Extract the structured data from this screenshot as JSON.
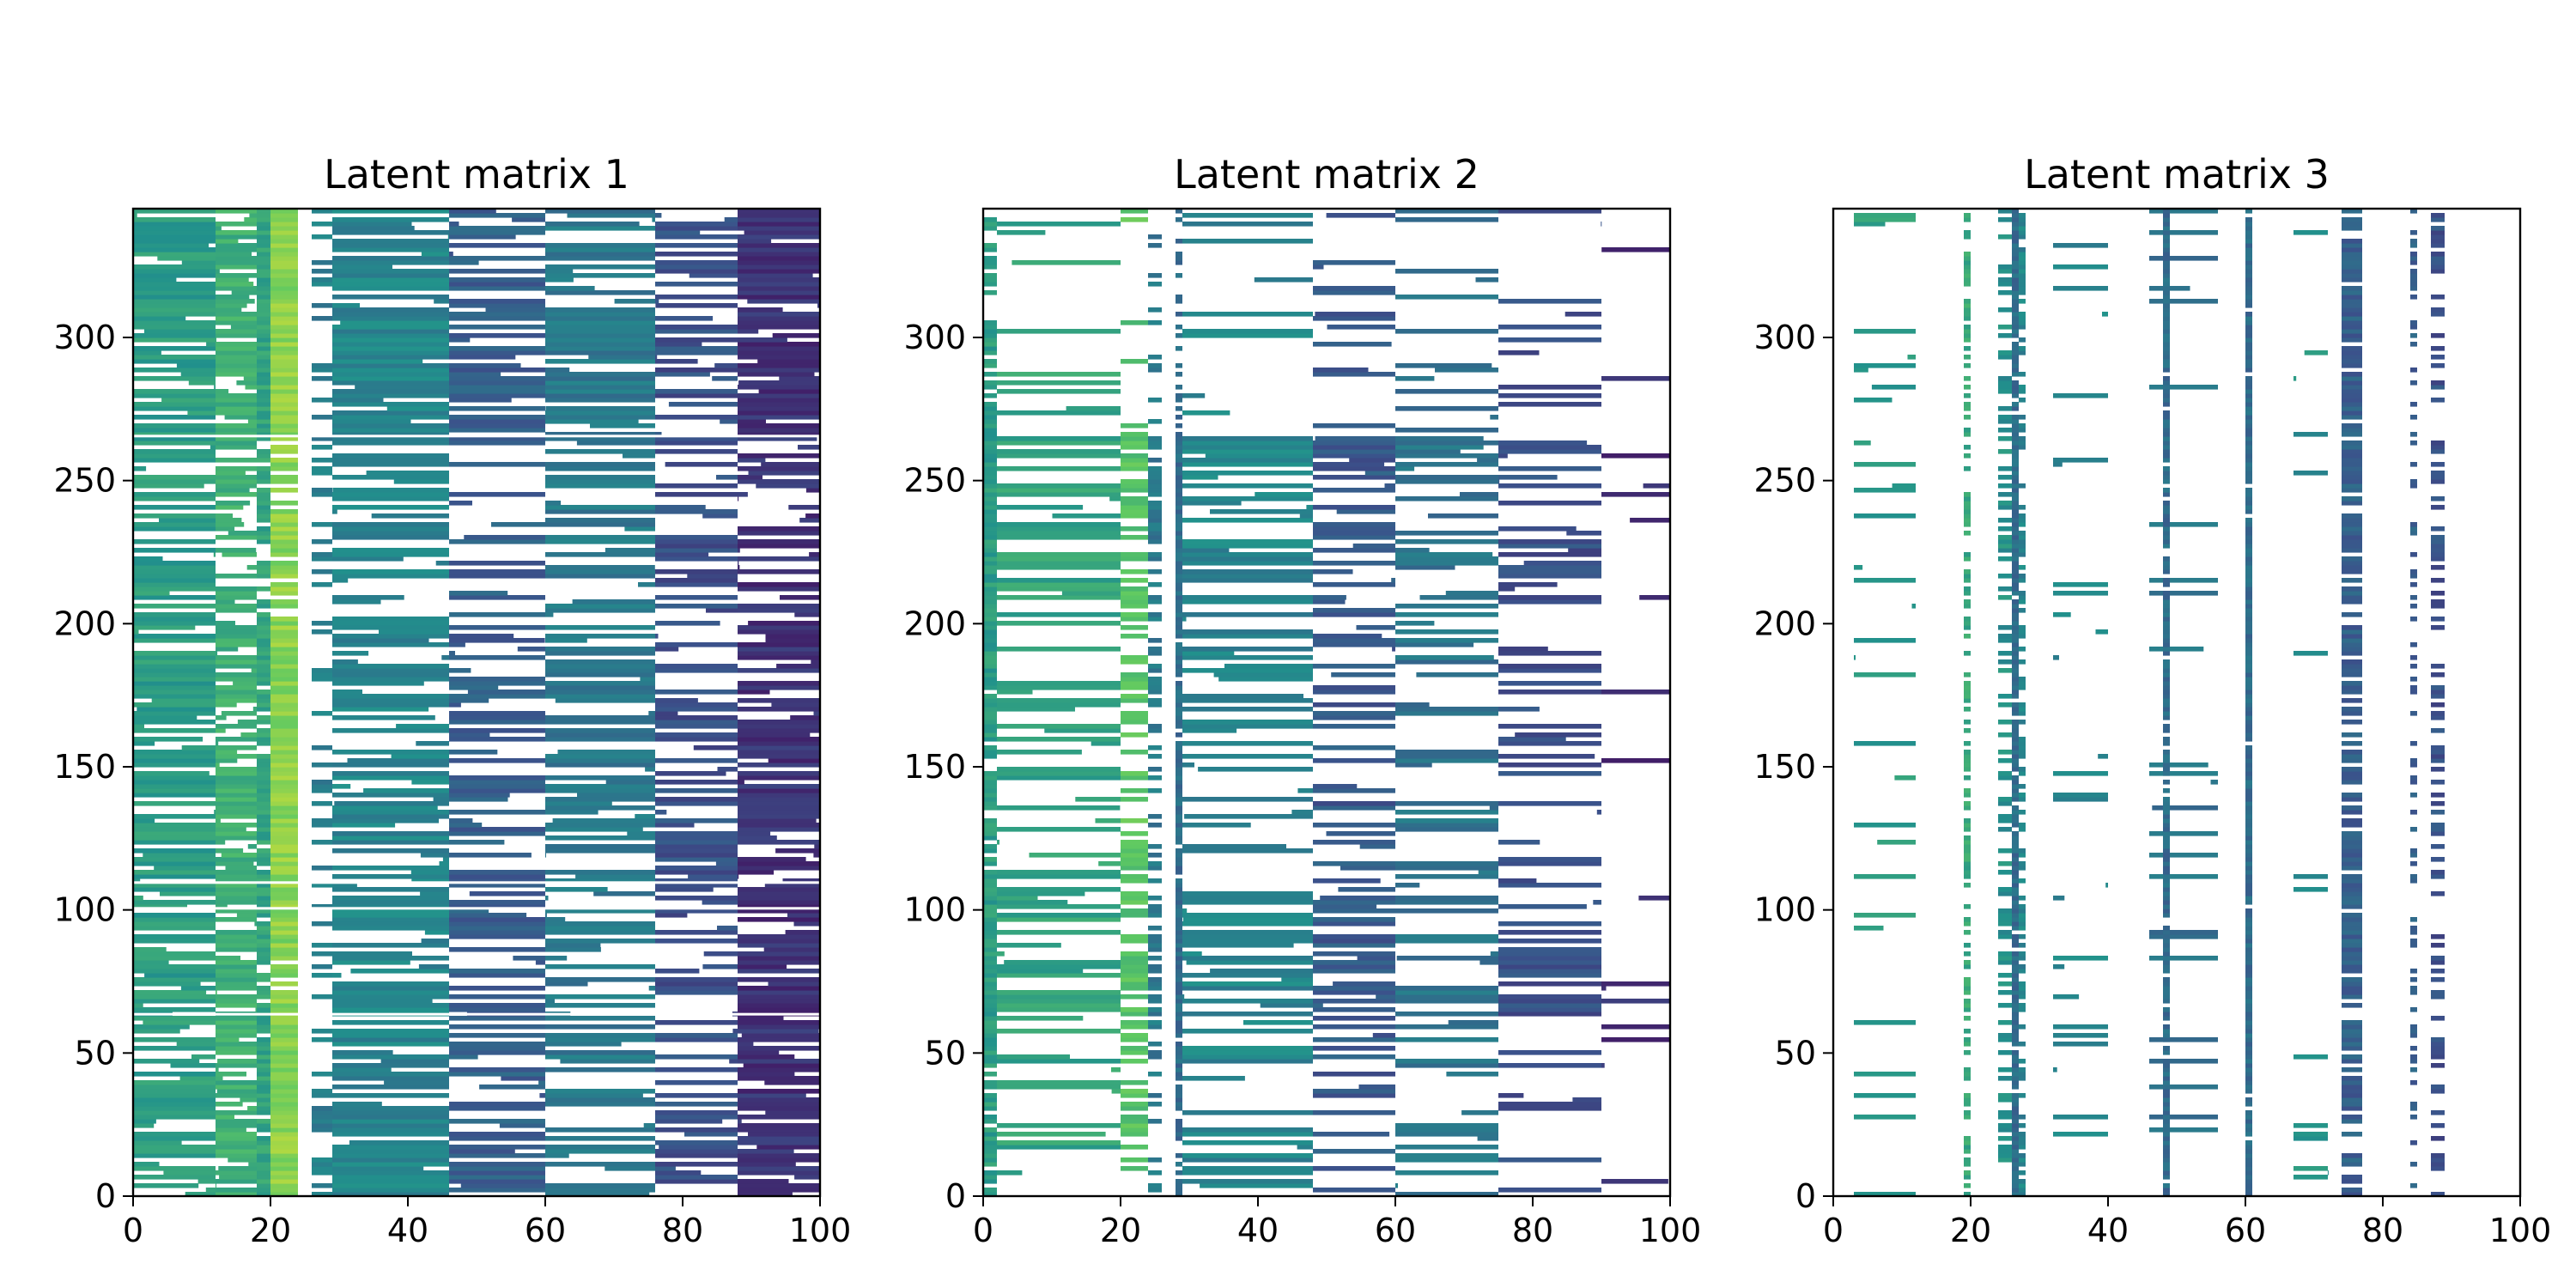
{
  "chart_data": [
    {
      "type": "heatmap",
      "title": "Latent matrix 1",
      "xlabel": "",
      "ylabel": "",
      "xlim": [
        0,
        100
      ],
      "ylim": [
        0,
        345
      ],
      "xticks": [
        "0",
        "20",
        "40",
        "60",
        "80",
        "100"
      ],
      "yticks": [
        "0",
        "50",
        "100",
        "150",
        "200",
        "250",
        "300"
      ],
      "colormap": "viridis",
      "columns": [
        {
          "x": [
            0,
            12
          ],
          "level": 0.55,
          "density": 0.82
        },
        {
          "x": [
            12,
            18
          ],
          "level": 0.63,
          "density": 0.92
        },
        {
          "x": [
            18,
            20
          ],
          "level": 0.58,
          "density": 0.8
        },
        {
          "x": [
            20,
            24
          ],
          "level": 0.82,
          "density": 0.95
        },
        {
          "x": [
            26,
            29
          ],
          "level": 0.42,
          "density": 0.3
        },
        {
          "x": [
            29,
            46
          ],
          "level": 0.45,
          "density": 0.78
        },
        {
          "x": [
            46,
            60
          ],
          "level": 0.3,
          "density": 0.62
        },
        {
          "x": [
            60,
            76
          ],
          "level": 0.4,
          "density": 0.65
        },
        {
          "x": [
            76,
            88
          ],
          "level": 0.25,
          "density": 0.55
        },
        {
          "x": [
            88,
            100
          ],
          "level": 0.15,
          "density": 0.88
        }
      ],
      "row_bands": [
        {
          "y": [
            264,
            345
          ],
          "density": 0.95
        },
        {
          "y": [
            200,
            264
          ],
          "density": 0.55
        },
        {
          "y": [
            110,
            200
          ],
          "density": 0.8
        },
        {
          "y": [
            100,
            110
          ],
          "density": 0.9
        },
        {
          "y": [
            65,
            100
          ],
          "density": 0.7
        },
        {
          "y": [
            0,
            65
          ],
          "density": 0.85
        }
      ],
      "gaps": [
        265,
        109,
        100,
        63
      ]
    },
    {
      "type": "heatmap",
      "title": "Latent matrix 2",
      "xlabel": "",
      "ylabel": "",
      "xlim": [
        0,
        100
      ],
      "ylim": [
        0,
        345
      ],
      "xticks": [
        "0",
        "20",
        "40",
        "60",
        "80",
        "100"
      ],
      "yticks": [
        "0",
        "50",
        "100",
        "150",
        "200",
        "250",
        "300"
      ],
      "colormap": "viridis",
      "columns": [
        {
          "x": [
            0,
            2
          ],
          "level": 0.55,
          "density": 0.95
        },
        {
          "x": [
            2,
            20
          ],
          "level": 0.58,
          "density": 0.4
        },
        {
          "x": [
            20,
            24
          ],
          "level": 0.72,
          "density": 0.5
        },
        {
          "x": [
            24,
            26
          ],
          "level": 0.4,
          "density": 0.55
        },
        {
          "x": [
            28,
            29
          ],
          "level": 0.35,
          "density": 0.95
        },
        {
          "x": [
            29,
            48
          ],
          "level": 0.45,
          "density": 0.5
        },
        {
          "x": [
            48,
            60
          ],
          "level": 0.28,
          "density": 0.45
        },
        {
          "x": [
            60,
            75
          ],
          "level": 0.38,
          "density": 0.45
        },
        {
          "x": [
            75,
            90
          ],
          "level": 0.25,
          "density": 0.4
        },
        {
          "x": [
            90,
            100
          ],
          "level": 0.15,
          "density": 0.08
        }
      ],
      "row_bands": [
        {
          "y": [
            265,
            345
          ],
          "density": 0.1
        },
        {
          "y": [
            200,
            265
          ],
          "density": 0.95
        },
        {
          "y": [
            105,
            200
          ],
          "density": 0.55
        },
        {
          "y": [
            63,
            105
          ],
          "density": 1.0
        },
        {
          "y": [
            0,
            63
          ],
          "density": 0.5
        }
      ],
      "gaps": []
    },
    {
      "type": "heatmap",
      "title": "Latent matrix 3",
      "xlabel": "",
      "ylabel": "",
      "xlim": [
        0,
        100
      ],
      "ylim": [
        0,
        345
      ],
      "xticks": [
        "0",
        "20",
        "40",
        "60",
        "80",
        "100"
      ],
      "yticks": [
        "0",
        "50",
        "100",
        "150",
        "200",
        "250",
        "300"
      ],
      "colormap": "viridis",
      "columns": [
        {
          "x": [
            3,
            12
          ],
          "level": 0.55,
          "density": 0.18
        },
        {
          "x": [
            19,
            20
          ],
          "level": 0.6,
          "density": 0.55
        },
        {
          "x": [
            24,
            26
          ],
          "level": 0.5,
          "density": 0.4
        },
        {
          "x": [
            26,
            27
          ],
          "level": 0.35,
          "density": 0.95
        },
        {
          "x": [
            27,
            28
          ],
          "level": 0.45,
          "density": 0.5
        },
        {
          "x": [
            32,
            40
          ],
          "level": 0.45,
          "density": 0.12
        },
        {
          "x": [
            46,
            56
          ],
          "level": 0.38,
          "density": 0.12
        },
        {
          "x": [
            48,
            49
          ],
          "level": 0.35,
          "density": 0.9
        },
        {
          "x": [
            60,
            61
          ],
          "level": 0.35,
          "density": 0.98
        },
        {
          "x": [
            67,
            72
          ],
          "level": 0.5,
          "density": 0.06
        },
        {
          "x": [
            74,
            77
          ],
          "level": 0.3,
          "density": 0.75
        },
        {
          "x": [
            84,
            85
          ],
          "level": 0.3,
          "density": 0.4
        },
        {
          "x": [
            87,
            89
          ],
          "level": 0.25,
          "density": 0.45
        }
      ],
      "row_bands": [
        {
          "y": [
            0,
            2
          ],
          "density": 1.0
        },
        {
          "y": [
            2,
            345
          ],
          "density": 0.7
        }
      ],
      "gaps": []
    }
  ]
}
